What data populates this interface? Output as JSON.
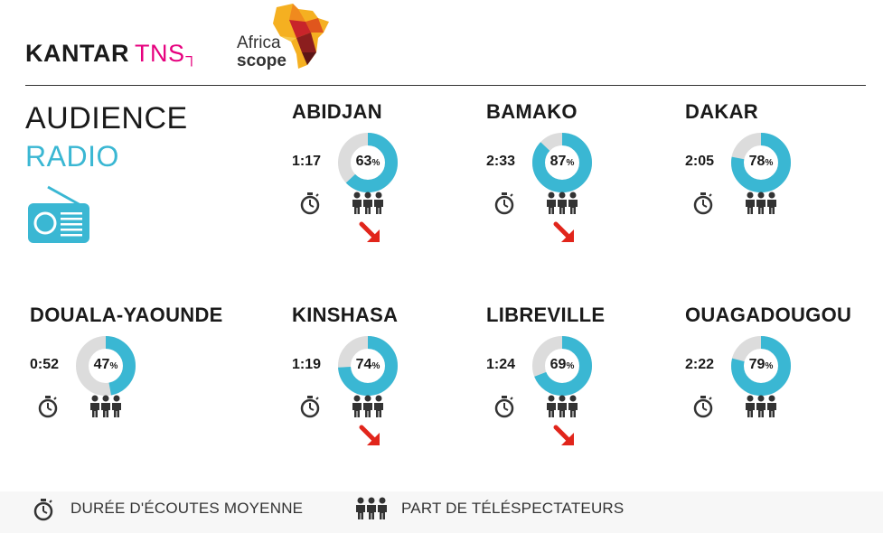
{
  "branding": {
    "kantar": "KANTAR",
    "tns": "TNS",
    "africa_line1": "Africa",
    "africa_line2": "scope"
  },
  "header": {
    "title_line1": "AUDIENCE",
    "title_line2": "RADIO"
  },
  "colors": {
    "accent": "#3ab7d3",
    "donut_track": "#dcdcdc",
    "arrow": "#e1251b",
    "kantar_pink": "#e6007e"
  },
  "cities": [
    {
      "name": "ABIDJAN",
      "duration": "1:17",
      "share": 63,
      "share_label": "63",
      "trend": "down"
    },
    {
      "name": "BAMAKO",
      "duration": "2:33",
      "share": 87,
      "share_label": "87",
      "trend": "down"
    },
    {
      "name": "DAKAR",
      "duration": "2:05",
      "share": 78,
      "share_label": "78",
      "trend": "none"
    },
    {
      "name": "DOUALA-YAOUNDE",
      "duration": "0:52",
      "share": 47,
      "share_label": "47",
      "trend": "none"
    },
    {
      "name": "KINSHASA",
      "duration": "1:19",
      "share": 74,
      "share_label": "74",
      "trend": "down"
    },
    {
      "name": "LIBREVILLE",
      "duration": "1:24",
      "share": 69,
      "share_label": "69",
      "trend": "down"
    },
    {
      "name": "OUAGADOUGOU",
      "duration": "2:22",
      "share": 79,
      "share_label": "79",
      "trend": "none"
    }
  ],
  "percent_symbol": "%",
  "legend": {
    "duration_label": "DURÉE D'ÉCOUTES MOYENNE",
    "share_label": "PART DE TÉLÉSPECTATEURS",
    "stopwatch_icon": "stopwatch-icon",
    "people_icon": "people-icon"
  }
}
